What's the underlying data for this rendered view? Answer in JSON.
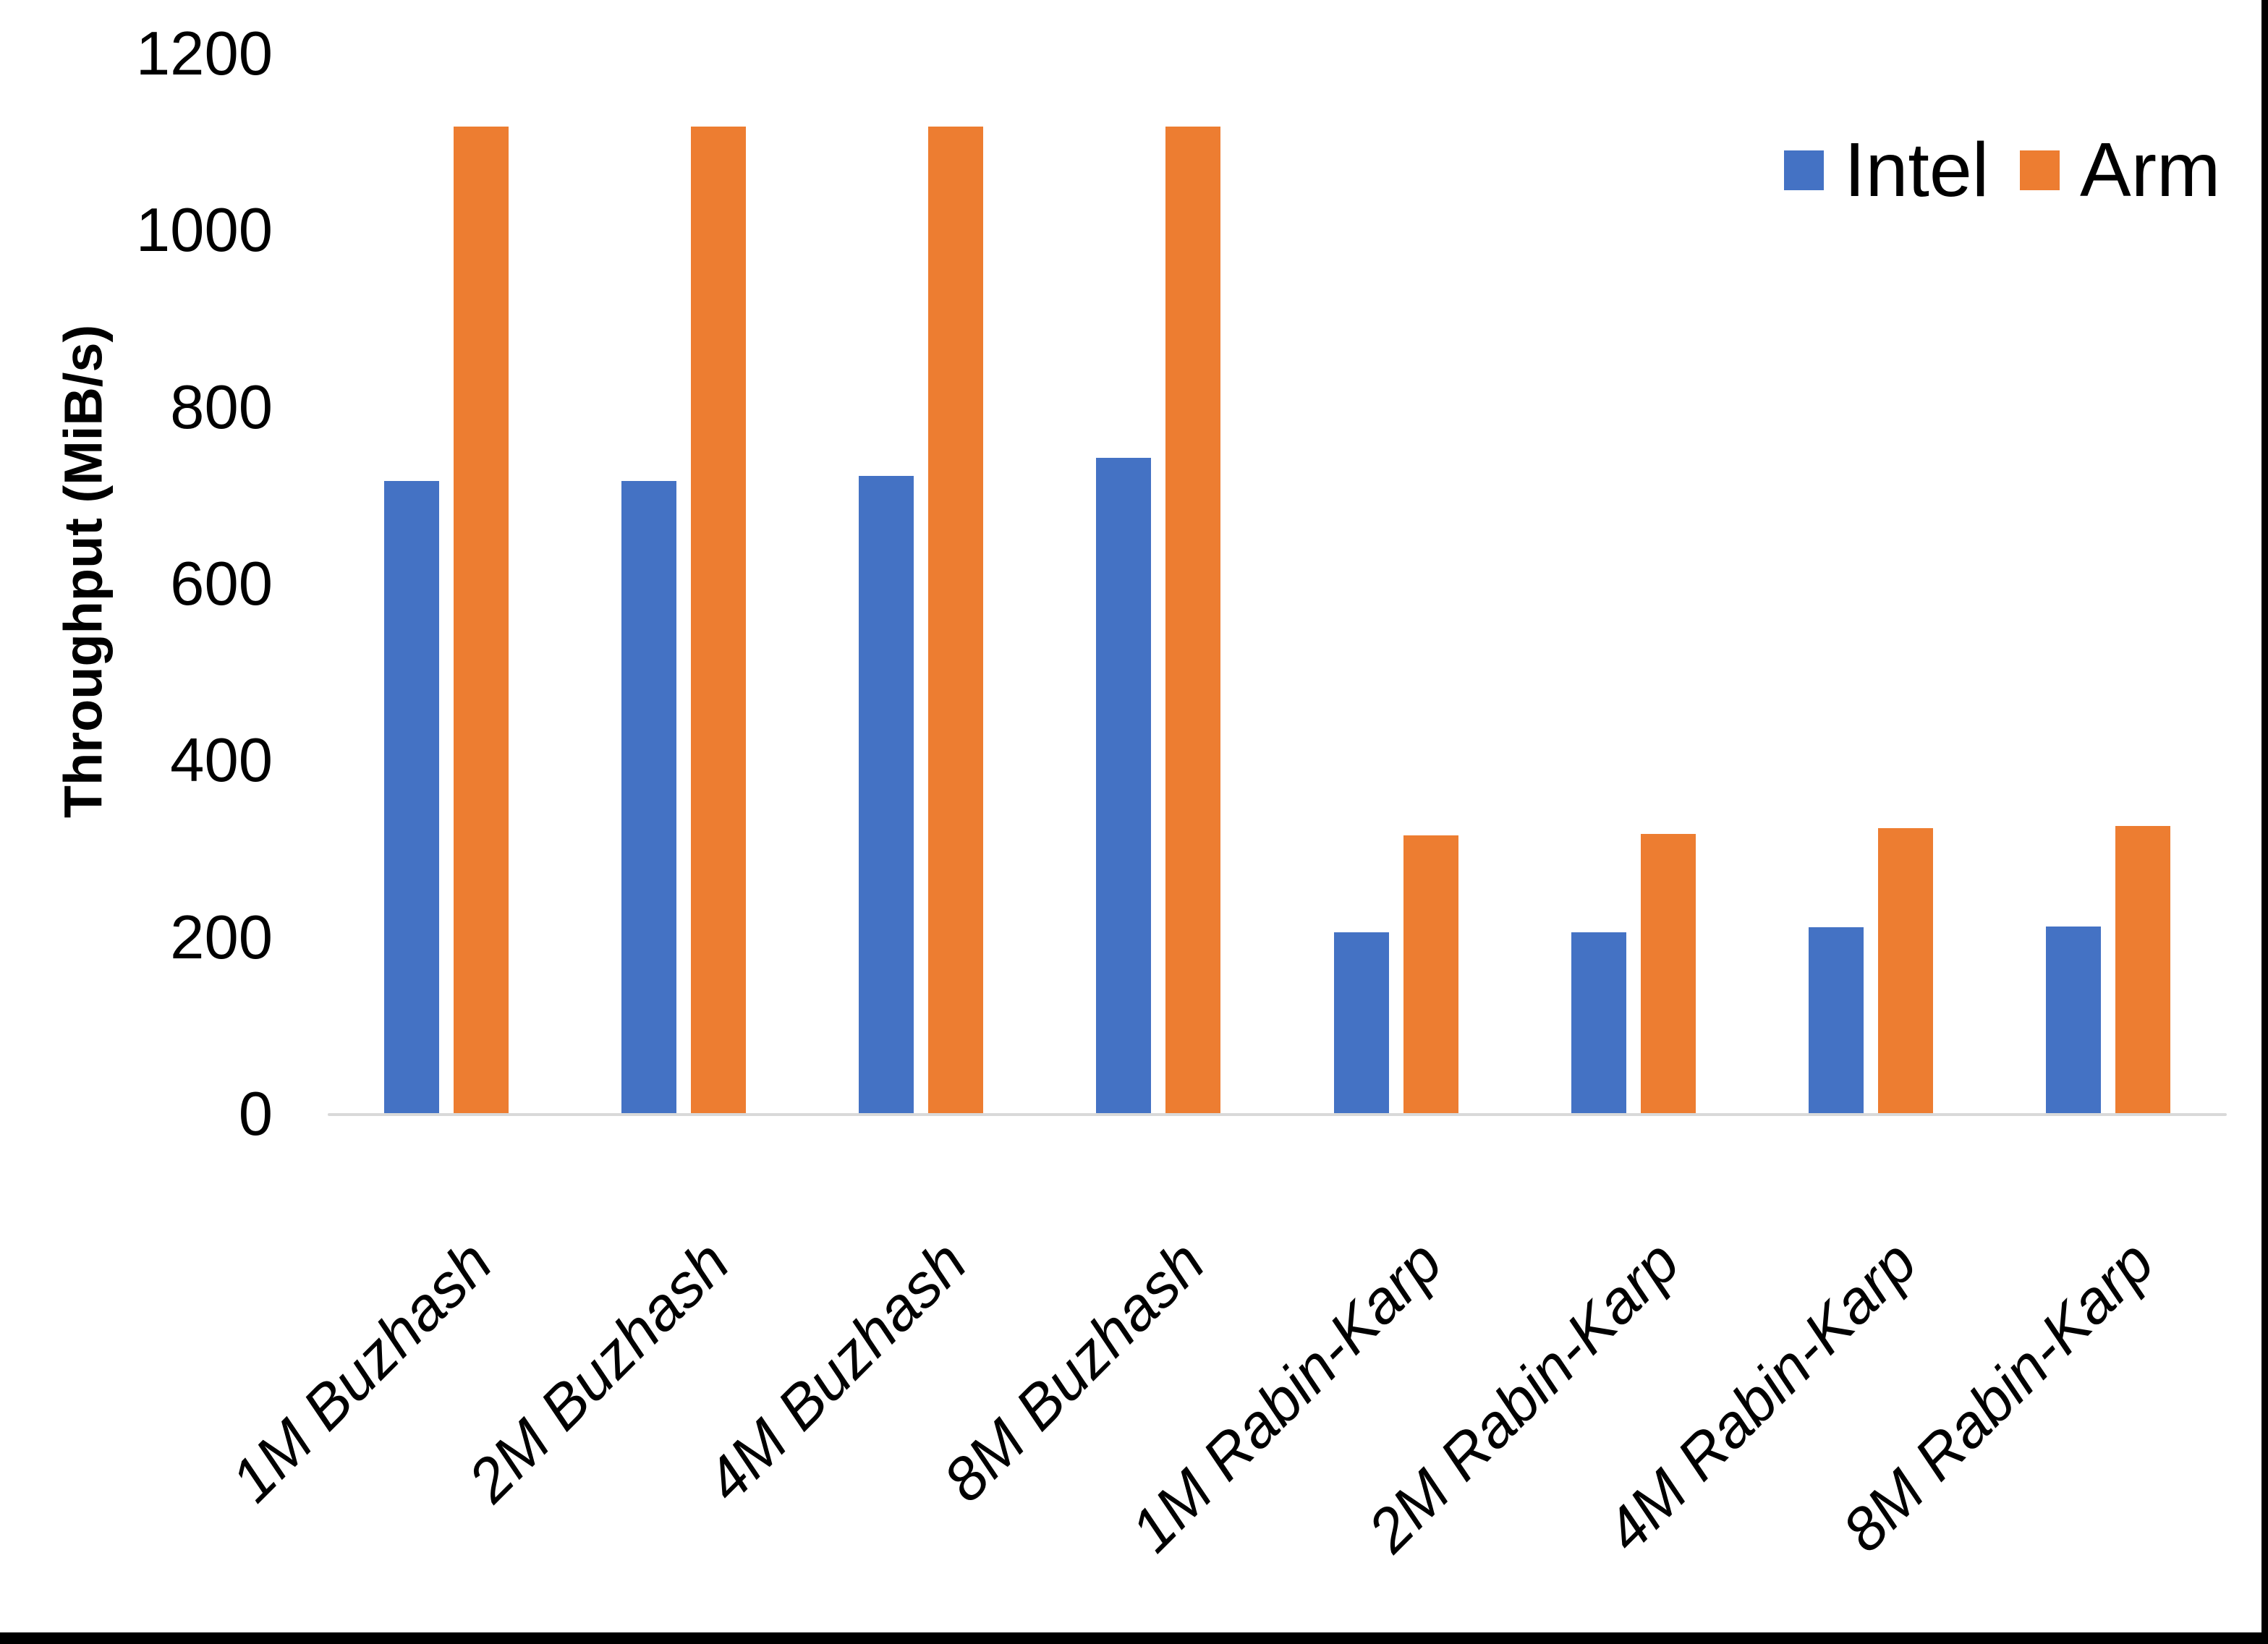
{
  "chart_data": {
    "type": "bar",
    "title": "",
    "ylabel": "Throughput (MiB/s)",
    "xlabel": "",
    "ylim": [
      0,
      1200
    ],
    "ytick_interval": 200,
    "yticks": [
      0,
      200,
      400,
      600,
      800,
      1000,
      1200
    ],
    "grid": false,
    "legend_position": "top-right",
    "axis_line_color": "#D9D9D9",
    "categories": [
      "1M Buzhash",
      "2M Buzhash",
      "4M Buzhash",
      "8M Buzhash",
      "1M Rabin-Karp",
      "2M Rabin-Karp",
      "4M Rabin-Karp",
      "8M Rabin-Karp"
    ],
    "series": [
      {
        "name": "Intel",
        "color": "#4472C4",
        "values": [
          717,
          717,
          723,
          743,
          206,
          206,
          212,
          213
        ]
      },
      {
        "name": "Arm",
        "color": "#ED7D31",
        "values": [
          1118,
          1118,
          1118,
          1118,
          316,
          318,
          324,
          327
        ]
      }
    ]
  },
  "page": {
    "background": "#FFFFFF",
    "frame_color": "#000000",
    "text_color": "#000000"
  }
}
